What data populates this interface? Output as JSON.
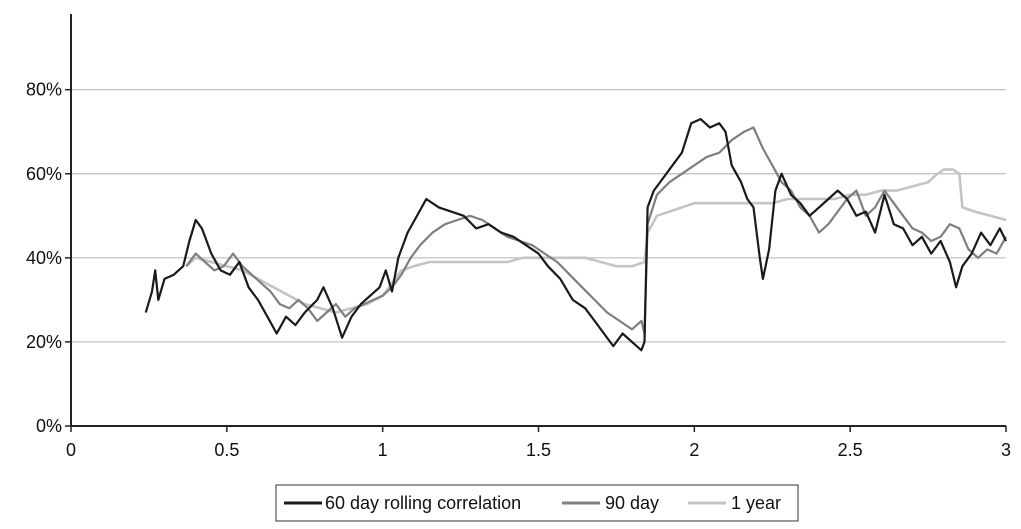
{
  "chart_data": {
    "type": "line",
    "title": "",
    "xlabel": "",
    "ylabel": "",
    "xlim": [
      0,
      3
    ],
    "ylim": [
      0,
      1
    ],
    "x_ticks": [
      "0",
      "0.5",
      "1",
      "1.5",
      "2",
      "2.5",
      "3"
    ],
    "y_ticks": [
      "0%",
      "20%",
      "40%",
      "60%",
      "80%"
    ],
    "grid": true,
    "legend_position": "bottom",
    "series": [
      {
        "name": "60 day rolling correlation",
        "color": "#1a1a1a",
        "points": [
          [
            0.24,
            0.27
          ],
          [
            0.26,
            0.32
          ],
          [
            0.27,
            0.37
          ],
          [
            0.28,
            0.3
          ],
          [
            0.3,
            0.35
          ],
          [
            0.33,
            0.36
          ],
          [
            0.36,
            0.38
          ],
          [
            0.38,
            0.44
          ],
          [
            0.4,
            0.49
          ],
          [
            0.42,
            0.47
          ],
          [
            0.45,
            0.41
          ],
          [
            0.48,
            0.37
          ],
          [
            0.51,
            0.36
          ],
          [
            0.54,
            0.39
          ],
          [
            0.57,
            0.33
          ],
          [
            0.6,
            0.3
          ],
          [
            0.63,
            0.26
          ],
          [
            0.66,
            0.22
          ],
          [
            0.69,
            0.26
          ],
          [
            0.72,
            0.24
          ],
          [
            0.75,
            0.27
          ],
          [
            0.79,
            0.3
          ],
          [
            0.81,
            0.33
          ],
          [
            0.84,
            0.28
          ],
          [
            0.87,
            0.21
          ],
          [
            0.9,
            0.26
          ],
          [
            0.93,
            0.29
          ],
          [
            0.96,
            0.31
          ],
          [
            0.99,
            0.33
          ],
          [
            1.01,
            0.37
          ],
          [
            1.03,
            0.32
          ],
          [
            1.05,
            0.4
          ],
          [
            1.08,
            0.46
          ],
          [
            1.11,
            0.5
          ],
          [
            1.14,
            0.54
          ],
          [
            1.18,
            0.52
          ],
          [
            1.22,
            0.51
          ],
          [
            1.26,
            0.5
          ],
          [
            1.3,
            0.47
          ],
          [
            1.34,
            0.48
          ],
          [
            1.38,
            0.46
          ],
          [
            1.42,
            0.45
          ],
          [
            1.46,
            0.43
          ],
          [
            1.5,
            0.41
          ],
          [
            1.53,
            0.38
          ],
          [
            1.57,
            0.35
          ],
          [
            1.61,
            0.3
          ],
          [
            1.65,
            0.28
          ],
          [
            1.68,
            0.25
          ],
          [
            1.71,
            0.22
          ],
          [
            1.74,
            0.19
          ],
          [
            1.77,
            0.22
          ],
          [
            1.8,
            0.2
          ],
          [
            1.83,
            0.18
          ],
          [
            1.84,
            0.2
          ],
          [
            1.85,
            0.52
          ],
          [
            1.87,
            0.56
          ],
          [
            1.9,
            0.59
          ],
          [
            1.93,
            0.62
          ],
          [
            1.96,
            0.65
          ],
          [
            1.99,
            0.72
          ],
          [
            2.02,
            0.73
          ],
          [
            2.05,
            0.71
          ],
          [
            2.08,
            0.72
          ],
          [
            2.1,
            0.7
          ],
          [
            2.12,
            0.62
          ],
          [
            2.15,
            0.58
          ],
          [
            2.17,
            0.54
          ],
          [
            2.19,
            0.52
          ],
          [
            2.21,
            0.4
          ],
          [
            2.22,
            0.35
          ],
          [
            2.24,
            0.42
          ],
          [
            2.26,
            0.56
          ],
          [
            2.28,
            0.6
          ],
          [
            2.31,
            0.55
          ],
          [
            2.34,
            0.53
          ],
          [
            2.37,
            0.5
          ],
          [
            2.4,
            0.52
          ],
          [
            2.43,
            0.54
          ],
          [
            2.46,
            0.56
          ],
          [
            2.49,
            0.54
          ],
          [
            2.52,
            0.5
          ],
          [
            2.55,
            0.51
          ],
          [
            2.58,
            0.46
          ],
          [
            2.61,
            0.55
          ],
          [
            2.64,
            0.48
          ],
          [
            2.67,
            0.47
          ],
          [
            2.7,
            0.43
          ],
          [
            2.73,
            0.45
          ],
          [
            2.76,
            0.41
          ],
          [
            2.79,
            0.44
          ],
          [
            2.82,
            0.39
          ],
          [
            2.84,
            0.33
          ],
          [
            2.86,
            0.38
          ],
          [
            2.89,
            0.41
          ],
          [
            2.92,
            0.46
          ],
          [
            2.95,
            0.43
          ],
          [
            2.98,
            0.47
          ],
          [
            3.0,
            0.44
          ]
        ]
      },
      {
        "name": "90 day",
        "color": "#7f7f7f",
        "points": [
          [
            0.37,
            0.38
          ],
          [
            0.4,
            0.41
          ],
          [
            0.43,
            0.39
          ],
          [
            0.46,
            0.37
          ],
          [
            0.49,
            0.38
          ],
          [
            0.52,
            0.41
          ],
          [
            0.55,
            0.38
          ],
          [
            0.58,
            0.36
          ],
          [
            0.61,
            0.34
          ],
          [
            0.64,
            0.32
          ],
          [
            0.67,
            0.29
          ],
          [
            0.7,
            0.28
          ],
          [
            0.73,
            0.3
          ],
          [
            0.76,
            0.28
          ],
          [
            0.79,
            0.25
          ],
          [
            0.82,
            0.27
          ],
          [
            0.85,
            0.29
          ],
          [
            0.88,
            0.26
          ],
          [
            0.91,
            0.28
          ],
          [
            0.94,
            0.29
          ],
          [
            0.97,
            0.3
          ],
          [
            1.0,
            0.31
          ],
          [
            1.03,
            0.33
          ],
          [
            1.06,
            0.36
          ],
          [
            1.09,
            0.4
          ],
          [
            1.12,
            0.43
          ],
          [
            1.16,
            0.46
          ],
          [
            1.2,
            0.48
          ],
          [
            1.24,
            0.49
          ],
          [
            1.28,
            0.5
          ],
          [
            1.32,
            0.49
          ],
          [
            1.36,
            0.47
          ],
          [
            1.4,
            0.45
          ],
          [
            1.44,
            0.44
          ],
          [
            1.48,
            0.43
          ],
          [
            1.52,
            0.41
          ],
          [
            1.56,
            0.39
          ],
          [
            1.6,
            0.36
          ],
          [
            1.64,
            0.33
          ],
          [
            1.68,
            0.3
          ],
          [
            1.72,
            0.27
          ],
          [
            1.76,
            0.25
          ],
          [
            1.8,
            0.23
          ],
          [
            1.83,
            0.25
          ],
          [
            1.84,
            0.22
          ],
          [
            1.85,
            0.48
          ],
          [
            1.88,
            0.55
          ],
          [
            1.92,
            0.58
          ],
          [
            1.96,
            0.6
          ],
          [
            2.0,
            0.62
          ],
          [
            2.04,
            0.64
          ],
          [
            2.08,
            0.65
          ],
          [
            2.12,
            0.68
          ],
          [
            2.16,
            0.7
          ],
          [
            2.19,
            0.71
          ],
          [
            2.22,
            0.66
          ],
          [
            2.25,
            0.62
          ],
          [
            2.28,
            0.58
          ],
          [
            2.31,
            0.56
          ],
          [
            2.34,
            0.52
          ],
          [
            2.37,
            0.5
          ],
          [
            2.4,
            0.46
          ],
          [
            2.43,
            0.48
          ],
          [
            2.46,
            0.51
          ],
          [
            2.49,
            0.54
          ],
          [
            2.52,
            0.56
          ],
          [
            2.55,
            0.5
          ],
          [
            2.58,
            0.52
          ],
          [
            2.61,
            0.56
          ],
          [
            2.64,
            0.53
          ],
          [
            2.67,
            0.5
          ],
          [
            2.7,
            0.47
          ],
          [
            2.73,
            0.46
          ],
          [
            2.76,
            0.44
          ],
          [
            2.79,
            0.45
          ],
          [
            2.82,
            0.48
          ],
          [
            2.85,
            0.47
          ],
          [
            2.88,
            0.42
          ],
          [
            2.91,
            0.4
          ],
          [
            2.94,
            0.42
          ],
          [
            2.97,
            0.41
          ],
          [
            3.0,
            0.45
          ]
        ]
      },
      {
        "name": "1 year",
        "color": "#c4c4c4",
        "points": [
          [
            0.37,
            0.38
          ],
          [
            0.4,
            0.4
          ],
          [
            0.45,
            0.39
          ],
          [
            0.5,
            0.38
          ],
          [
            0.55,
            0.37
          ],
          [
            0.6,
            0.35
          ],
          [
            0.65,
            0.33
          ],
          [
            0.7,
            0.31
          ],
          [
            0.75,
            0.29
          ],
          [
            0.8,
            0.28
          ],
          [
            0.85,
            0.27
          ],
          [
            0.9,
            0.28
          ],
          [
            0.95,
            0.29
          ],
          [
            1.0,
            0.31
          ],
          [
            1.03,
            0.34
          ],
          [
            1.06,
            0.37
          ],
          [
            1.1,
            0.38
          ],
          [
            1.15,
            0.39
          ],
          [
            1.2,
            0.39
          ],
          [
            1.25,
            0.39
          ],
          [
            1.3,
            0.39
          ],
          [
            1.35,
            0.39
          ],
          [
            1.4,
            0.39
          ],
          [
            1.45,
            0.4
          ],
          [
            1.5,
            0.4
          ],
          [
            1.55,
            0.4
          ],
          [
            1.6,
            0.4
          ],
          [
            1.65,
            0.4
          ],
          [
            1.7,
            0.39
          ],
          [
            1.75,
            0.38
          ],
          [
            1.8,
            0.38
          ],
          [
            1.84,
            0.39
          ],
          [
            1.85,
            0.46
          ],
          [
            1.88,
            0.5
          ],
          [
            1.92,
            0.51
          ],
          [
            1.96,
            0.52
          ],
          [
            2.0,
            0.53
          ],
          [
            2.05,
            0.53
          ],
          [
            2.1,
            0.53
          ],
          [
            2.15,
            0.53
          ],
          [
            2.2,
            0.53
          ],
          [
            2.25,
            0.53
          ],
          [
            2.3,
            0.54
          ],
          [
            2.35,
            0.54
          ],
          [
            2.4,
            0.54
          ],
          [
            2.45,
            0.54
          ],
          [
            2.5,
            0.55
          ],
          [
            2.55,
            0.55
          ],
          [
            2.6,
            0.56
          ],
          [
            2.65,
            0.56
          ],
          [
            2.7,
            0.57
          ],
          [
            2.75,
            0.58
          ],
          [
            2.78,
            0.6
          ],
          [
            2.8,
            0.61
          ],
          [
            2.83,
            0.61
          ],
          [
            2.85,
            0.6
          ],
          [
            2.86,
            0.52
          ],
          [
            2.9,
            0.51
          ],
          [
            2.95,
            0.5
          ],
          [
            3.0,
            0.49
          ]
        ]
      }
    ]
  }
}
